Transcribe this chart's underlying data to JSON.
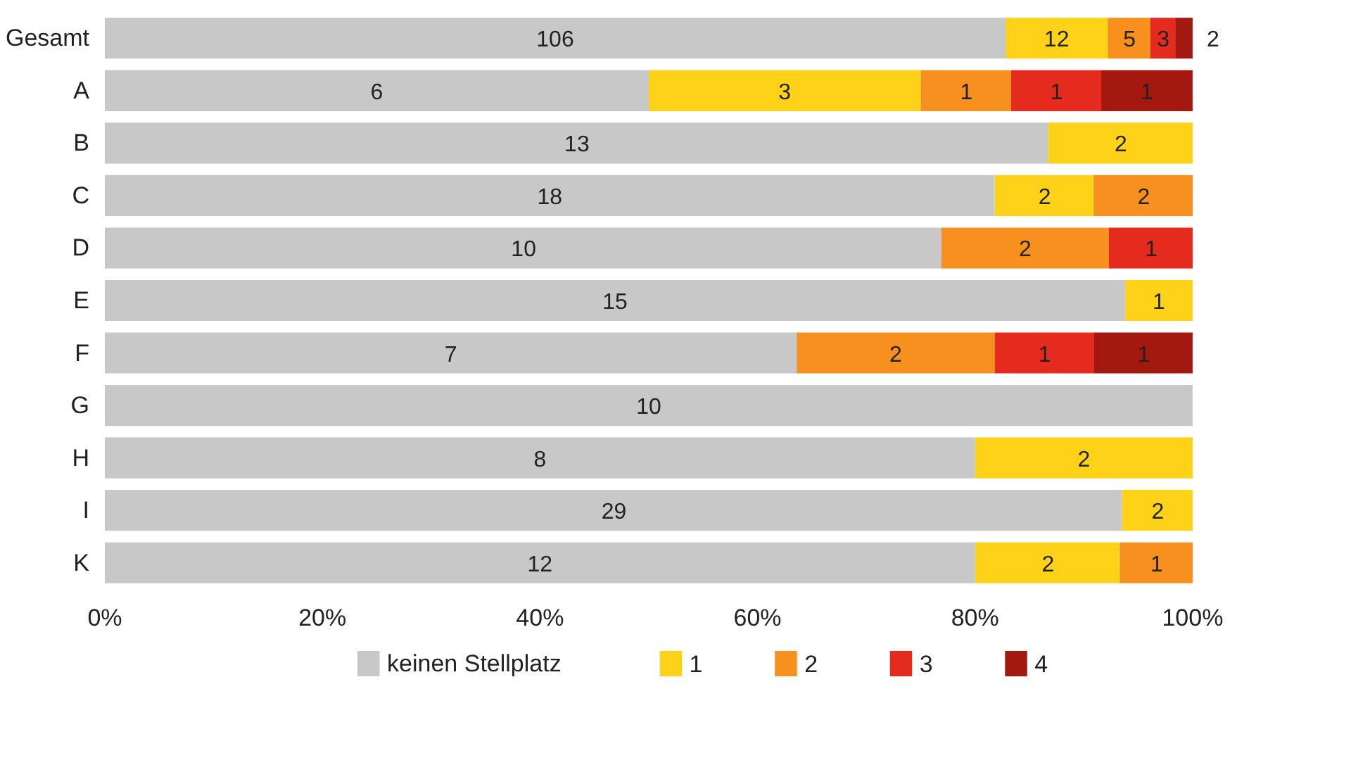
{
  "chart_data": {
    "type": "bar",
    "orientation": "horizontal",
    "stacked": true,
    "categories": [
      "Gesamt",
      "A",
      "B",
      "C",
      "D",
      "E",
      "F",
      "G",
      "H",
      "I",
      "K"
    ],
    "xlim": [
      0,
      100
    ],
    "xticks": [
      {
        "value": 0,
        "label": "0%"
      },
      {
        "value": 20,
        "label": "20%"
      },
      {
        "value": 40,
        "label": "40%"
      },
      {
        "value": 60,
        "label": "60%"
      },
      {
        "value": 80,
        "label": "80%"
      },
      {
        "value": 100,
        "label": "100%"
      }
    ],
    "grid": false,
    "legend": "bottom",
    "series": [
      {
        "name": "keinen Stellplatz",
        "color": "#c8c8c8",
        "values": [
          82.8,
          50,
          86.7,
          81.8,
          76.9,
          93.8,
          63.6,
          100,
          80,
          93.5,
          80
        ]
      },
      {
        "name": "1",
        "color": "#ffd21a",
        "values": [
          9.4,
          25,
          13.3,
          9.1,
          null,
          6.2,
          null,
          null,
          20,
          6.5,
          13.3
        ]
      },
      {
        "name": "2",
        "color": "#f7901e",
        "values": [
          3.9,
          8.3,
          null,
          9.1,
          15.4,
          null,
          18.2,
          null,
          null,
          null,
          6.7
        ]
      },
      {
        "name": "3",
        "color": "#e42b1e",
        "values": [
          2.3,
          8.3,
          null,
          null,
          7.7,
          null,
          9.1,
          null,
          null,
          null,
          null
        ]
      },
      {
        "name": "4",
        "color": "#a3180f",
        "values": [
          1.6,
          8.4,
          null,
          null,
          null,
          null,
          9.1,
          null,
          null,
          null,
          null
        ]
      }
    ],
    "annotations": [
      {
        "text": "106",
        "x": 41.4,
        "y": "Gesamt"
      },
      {
        "text": "12",
        "x": 87.5,
        "y": "Gesamt"
      },
      {
        "text": "5",
        "x": 94.2,
        "y": "Gesamt"
      },
      {
        "text": "3",
        "x": 97.3,
        "y": "Gesamt"
      },
      {
        "text": "2",
        "x": 100,
        "y": "Gesamt"
      },
      {
        "text": "6",
        "x": 25,
        "y": "A"
      },
      {
        "text": "3",
        "x": 62.5,
        "y": "A"
      },
      {
        "text": "1",
        "x": 79.2,
        "y": "A"
      },
      {
        "text": "1",
        "x": 87.5,
        "y": "A"
      },
      {
        "text": "1",
        "x": 95.8,
        "y": "A"
      },
      {
        "text": "13",
        "x": 43.4,
        "y": "B"
      },
      {
        "text": "2",
        "x": 93.4,
        "y": "B"
      },
      {
        "text": "18",
        "x": 40.9,
        "y": "C"
      },
      {
        "text": "2",
        "x": 86.4,
        "y": "C"
      },
      {
        "text": "2",
        "x": 95.5,
        "y": "C"
      },
      {
        "text": "10",
        "x": 38.5,
        "y": "D"
      },
      {
        "text": "2",
        "x": 84.6,
        "y": "D"
      },
      {
        "text": "1",
        "x": 96.2,
        "y": "D"
      },
      {
        "text": "15",
        "x": 46.9,
        "y": "E"
      },
      {
        "text": "1",
        "x": 96.9,
        "y": "E"
      },
      {
        "text": "7",
        "x": 31.8,
        "y": "F"
      },
      {
        "text": "2",
        "x": 72.7,
        "y": "F"
      },
      {
        "text": "1",
        "x": 86.4,
        "y": "F"
      },
      {
        "text": "1",
        "x": 95.5,
        "y": "F"
      },
      {
        "text": "10",
        "x": 50,
        "y": "G"
      },
      {
        "text": "8",
        "x": 40,
        "y": "H"
      },
      {
        "text": "2",
        "x": 90,
        "y": "H"
      },
      {
        "text": "29",
        "x": 46.8,
        "y": "I"
      },
      {
        "text": "2",
        "x": 96.8,
        "y": "I"
      },
      {
        "text": "12",
        "x": 40,
        "y": "K"
      },
      {
        "text": "2",
        "x": 86.7,
        "y": "K"
      },
      {
        "text": "1",
        "x": 96.7,
        "y": "K"
      }
    ]
  }
}
